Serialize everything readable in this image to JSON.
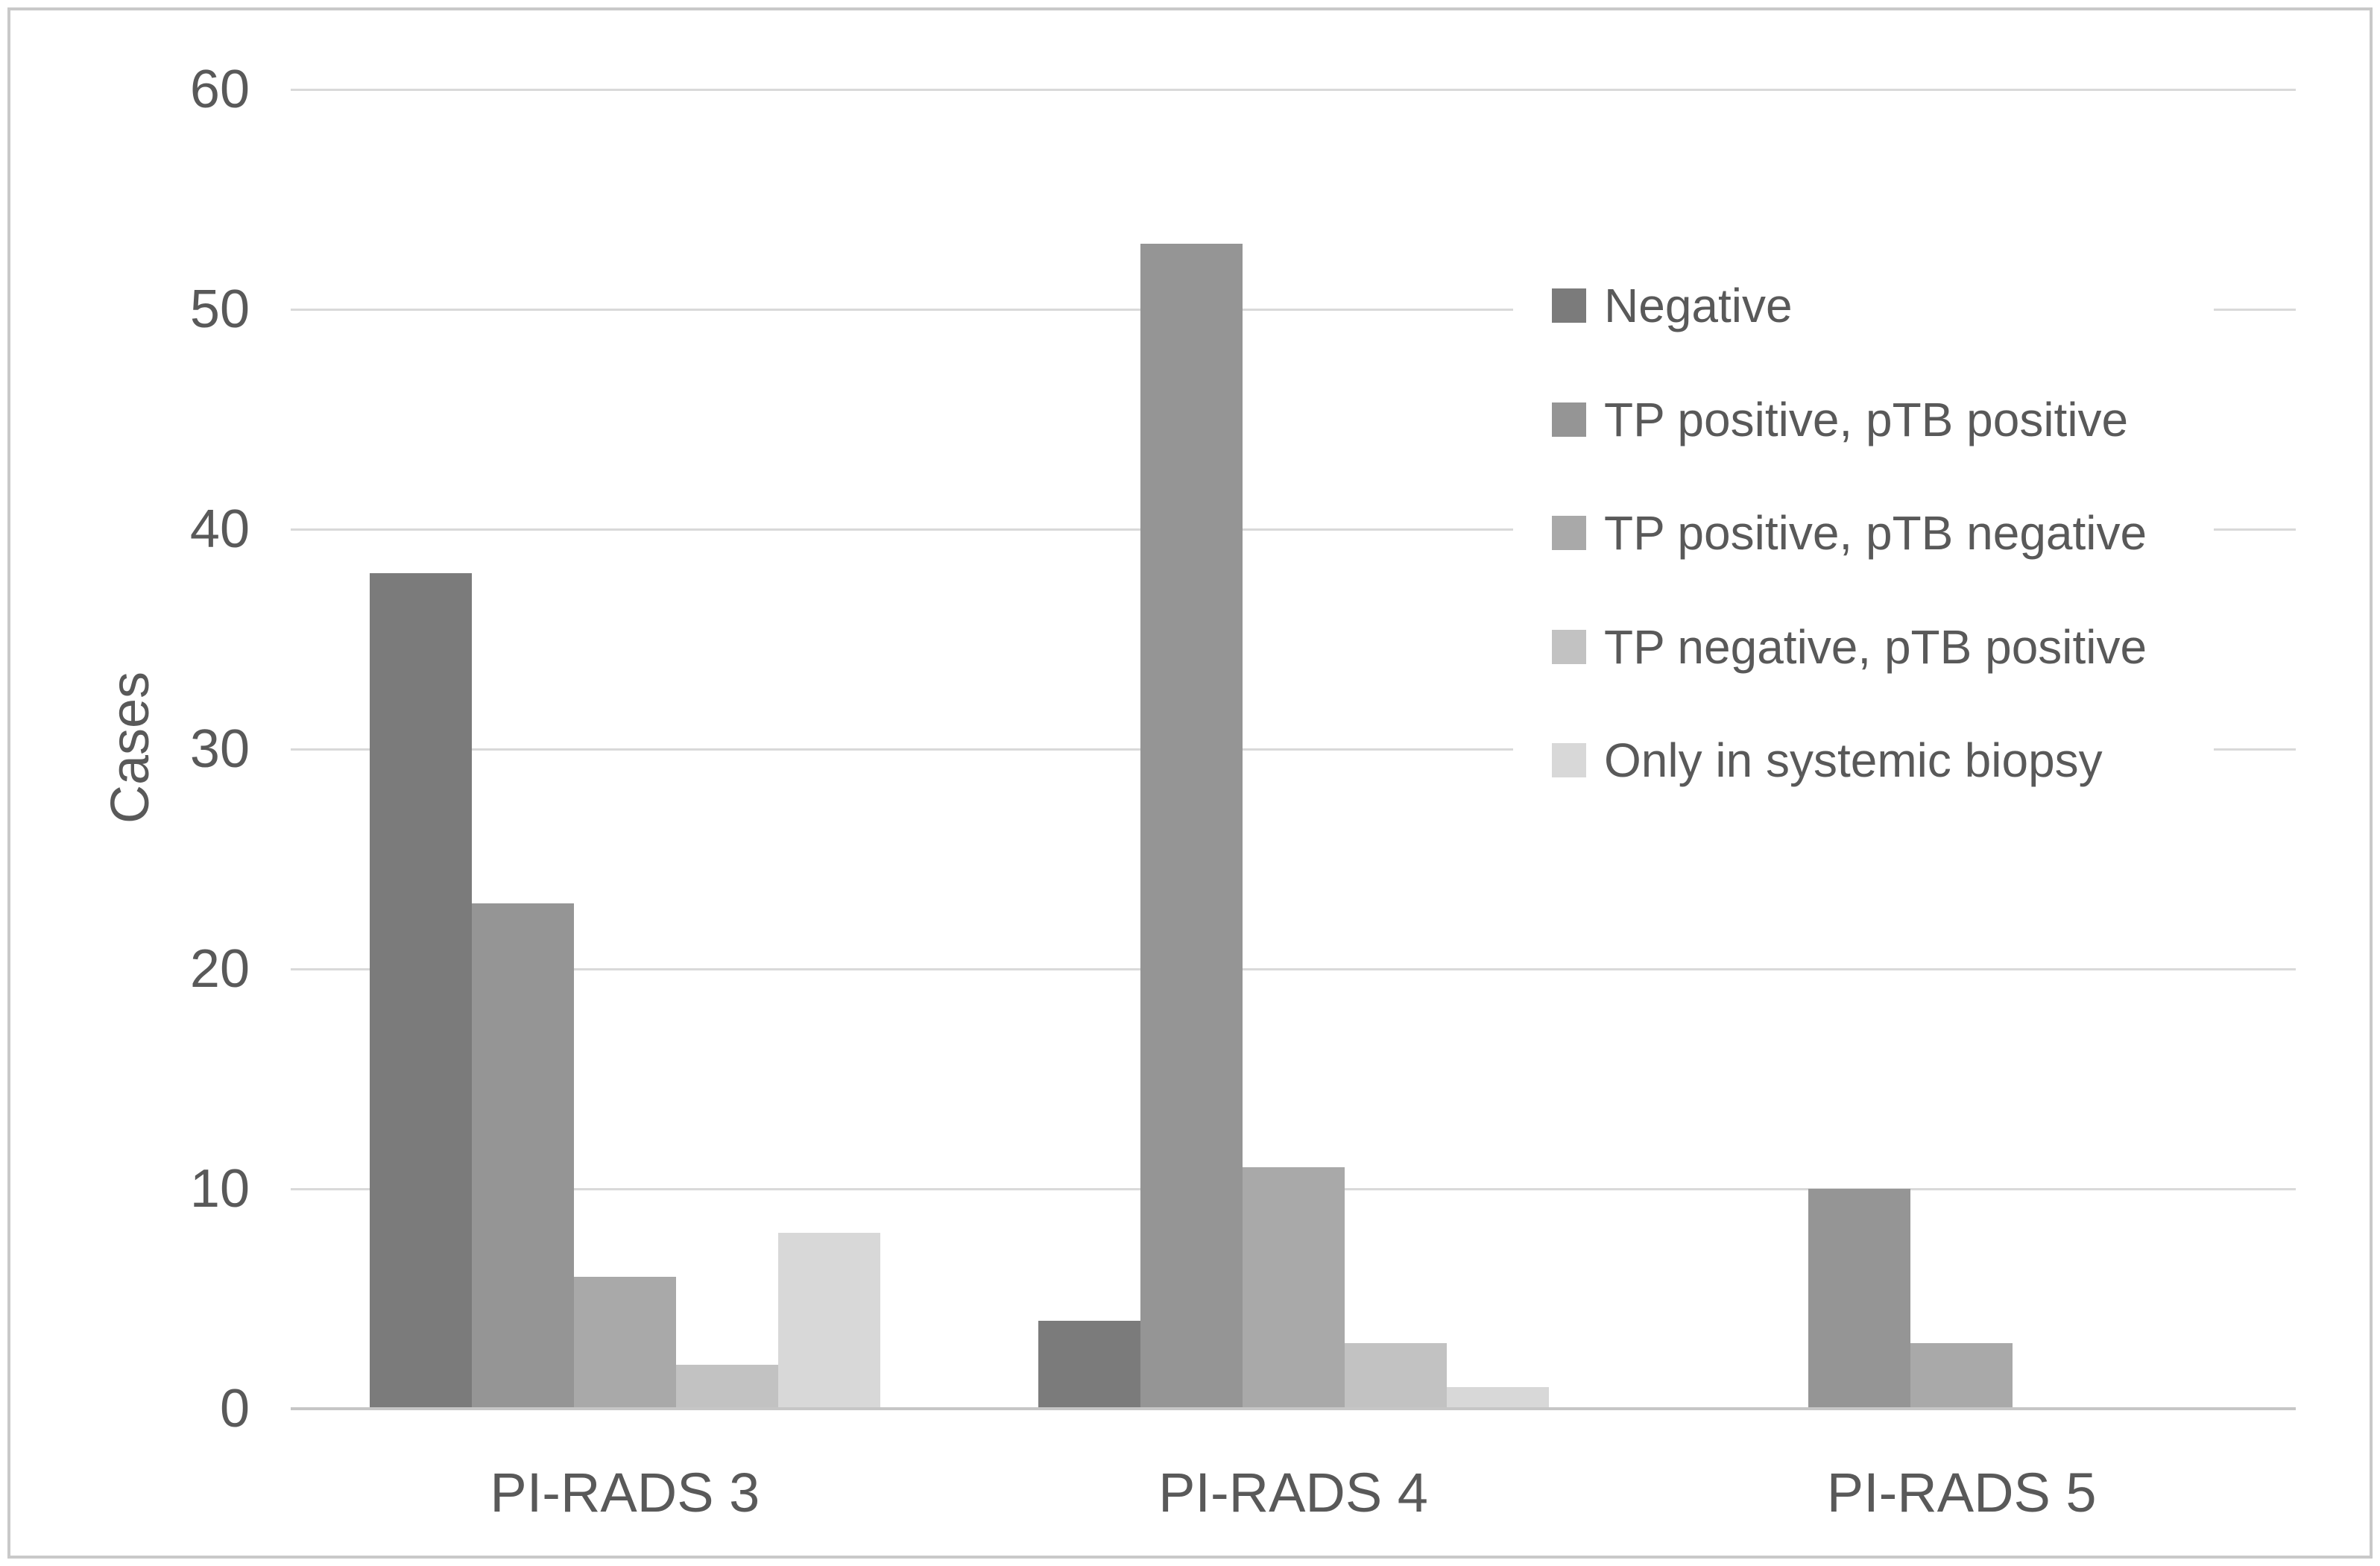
{
  "colors": {
    "background": "#ffffff",
    "text": "#595959",
    "gridline": "#d9d9d9",
    "axis_line": "#c6c6c6",
    "chart_border": "#c9c9c9",
    "legend_background": "#ffffff"
  },
  "chart_data": {
    "type": "bar",
    "title": "",
    "xlabel": "",
    "ylabel": "Cases",
    "categories": [
      "PI-RADS 3",
      "PI-RADS 4",
      "PI-RADS 5"
    ],
    "yticks": [
      0,
      10,
      20,
      30,
      40,
      50,
      60
    ],
    "ylim": [
      0,
      60
    ],
    "grid": true,
    "legend_position": "right-top-overlay",
    "series": [
      {
        "name": "Negative",
        "color": "#7b7b7b",
        "values": [
          38,
          4,
          0
        ]
      },
      {
        "name": "TP positive, pTB positive",
        "color": "#959595",
        "values": [
          23,
          53,
          10
        ]
      },
      {
        "name": "TP positive, pTB negative",
        "color": "#a9a9a9",
        "values": [
          6,
          11,
          3
        ]
      },
      {
        "name": "TP negative, pTB positive",
        "color": "#c2c2c2",
        "values": [
          2,
          3,
          0
        ]
      },
      {
        "name": "Only in systemic biopsy",
        "color": "#d8d8d8",
        "values": [
          8,
          1,
          0
        ]
      }
    ]
  }
}
